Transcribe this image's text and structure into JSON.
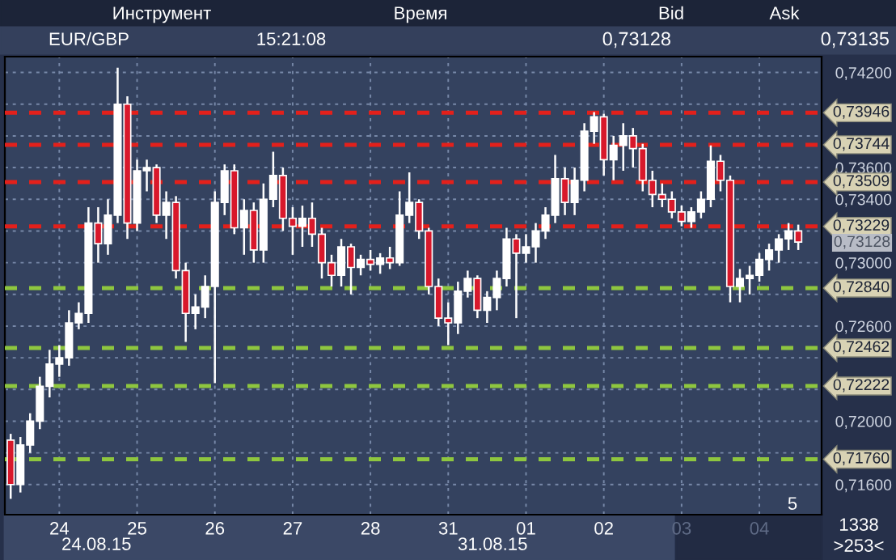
{
  "chart_data": {
    "type": "candlestick",
    "annotations": [
      "Инструмент",
      "Время",
      "Bid",
      "Ask",
      "EUR/GBP",
      "15:21:08",
      "0,73128",
      "0,73135",
      "24.08.15",
      "31.08.15",
      "5",
      "1338",
      ">253<",
      "0,73128"
    ],
    "categories": [
      null,
      null,
      null,
      null,
      null,
      "24",
      null,
      null,
      null,
      null,
      null,
      null,
      null,
      "25",
      null,
      null,
      null,
      null,
      null,
      null,
      null,
      "26",
      null,
      null,
      null,
      null,
      null,
      null,
      null,
      "27",
      null,
      null,
      null,
      null,
      null,
      null,
      null,
      "28",
      null,
      null,
      null,
      null,
      null,
      null,
      null,
      "31",
      null,
      null,
      null,
      null,
      null,
      null,
      null,
      "01",
      null,
      null,
      null,
      null,
      null,
      null,
      null,
      "02",
      null,
      null,
      null,
      null,
      null,
      null,
      null,
      "03",
      null,
      null,
      null,
      null,
      null,
      null,
      null,
      "04",
      null,
      null,
      null,
      null
    ],
    "ohlc": [
      [
        0.7188,
        0.7192,
        0.7151,
        0.716
      ],
      [
        0.716,
        0.719,
        0.7155,
        0.7185
      ],
      [
        0.7185,
        0.7205,
        0.718,
        0.72
      ],
      [
        0.72,
        0.7228,
        0.7195,
        0.7222
      ],
      [
        0.7222,
        0.7245,
        0.7215,
        0.7236
      ],
      [
        0.7236,
        0.7248,
        0.7228,
        0.724
      ],
      [
        0.724,
        0.727,
        0.7235,
        0.7262
      ],
      [
        0.7262,
        0.7275,
        0.7258,
        0.7268
      ],
      [
        0.7268,
        0.7335,
        0.7262,
        0.7325
      ],
      [
        0.7325,
        0.7335,
        0.73,
        0.7312
      ],
      [
        0.7312,
        0.734,
        0.7305,
        0.733
      ],
      [
        0.733,
        0.7423,
        0.7325,
        0.74
      ],
      [
        0.74,
        0.7405,
        0.7315,
        0.7325
      ],
      [
        0.7325,
        0.7365,
        0.732,
        0.7358
      ],
      [
        0.7358,
        0.7365,
        0.7345,
        0.736
      ],
      [
        0.736,
        0.7362,
        0.7325,
        0.733
      ],
      [
        0.733,
        0.7345,
        0.7315,
        0.7338
      ],
      [
        0.7338,
        0.7342,
        0.729,
        0.7295
      ],
      [
        0.7295,
        0.73,
        0.725,
        0.7268
      ],
      [
        0.7268,
        0.728,
        0.7258,
        0.7272
      ],
      [
        0.7272,
        0.7292,
        0.7265,
        0.7285
      ],
      [
        0.7285,
        0.7345,
        0.7224,
        0.7338
      ],
      [
        0.7338,
        0.7362,
        0.733,
        0.7358
      ],
      [
        0.7358,
        0.7362,
        0.7318,
        0.7322
      ],
      [
        0.7322,
        0.734,
        0.7305,
        0.7333
      ],
      [
        0.7333,
        0.7338,
        0.73,
        0.7308
      ],
      [
        0.7308,
        0.735,
        0.73,
        0.734
      ],
      [
        0.734,
        0.737,
        0.7335,
        0.7355
      ],
      [
        0.7355,
        0.736,
        0.732,
        0.7328
      ],
      [
        0.7328,
        0.7335,
        0.7305,
        0.7323
      ],
      [
        0.7323,
        0.7336,
        0.731,
        0.7328
      ],
      [
        0.7328,
        0.7338,
        0.731,
        0.7318
      ],
      [
        0.7318,
        0.7322,
        0.729,
        0.73
      ],
      [
        0.73,
        0.7305,
        0.7285,
        0.7292
      ],
      [
        0.7292,
        0.7315,
        0.7285,
        0.731
      ],
      [
        0.731,
        0.7312,
        0.728,
        0.7297
      ],
      [
        0.7297,
        0.7305,
        0.7292,
        0.7302
      ],
      [
        0.7302,
        0.7308,
        0.7295,
        0.7299
      ],
      [
        0.7299,
        0.7306,
        0.7293,
        0.7303
      ],
      [
        0.7303,
        0.731,
        0.7296,
        0.73
      ],
      [
        0.73,
        0.7345,
        0.7298,
        0.733
      ],
      [
        0.733,
        0.7357,
        0.7325,
        0.7338
      ],
      [
        0.7338,
        0.734,
        0.7315,
        0.732
      ],
      [
        0.732,
        0.7322,
        0.728,
        0.7285
      ],
      [
        0.7285,
        0.729,
        0.726,
        0.7265
      ],
      [
        0.7265,
        0.7275,
        0.7248,
        0.7262
      ],
      [
        0.7262,
        0.7288,
        0.7255,
        0.7282
      ],
      [
        0.7282,
        0.7295,
        0.7278,
        0.729
      ],
      [
        0.729,
        0.7292,
        0.7265,
        0.727
      ],
      [
        0.727,
        0.7282,
        0.7262,
        0.7278
      ],
      [
        0.7278,
        0.7295,
        0.727,
        0.729
      ],
      [
        0.729,
        0.7322,
        0.7285,
        0.7315
      ],
      [
        0.7315,
        0.7318,
        0.7265,
        0.7306
      ],
      [
        0.7306,
        0.7318,
        0.73,
        0.731
      ],
      [
        0.731,
        0.7325,
        0.73,
        0.732
      ],
      [
        0.732,
        0.7335,
        0.7315,
        0.733
      ],
      [
        0.733,
        0.7368,
        0.7325,
        0.7353
      ],
      [
        0.7353,
        0.736,
        0.733,
        0.7338
      ],
      [
        0.7338,
        0.736,
        0.733,
        0.7352
      ],
      [
        0.7352,
        0.7388,
        0.7345,
        0.7383
      ],
      [
        0.7383,
        0.7395,
        0.7375,
        0.7392
      ],
      [
        0.7392,
        0.7394,
        0.7355,
        0.7365
      ],
      [
        0.7365,
        0.738,
        0.7352,
        0.7374
      ],
      [
        0.7374,
        0.7388,
        0.7358,
        0.738
      ],
      [
        0.738,
        0.7385,
        0.736,
        0.7372
      ],
      [
        0.7372,
        0.7375,
        0.7345,
        0.7352
      ],
      [
        0.7352,
        0.7358,
        0.7335,
        0.7343
      ],
      [
        0.7343,
        0.735,
        0.7335,
        0.734
      ],
      [
        0.734,
        0.7345,
        0.7328,
        0.7332
      ],
      [
        0.7332,
        0.7336,
        0.7323,
        0.7326
      ],
      [
        0.7326,
        0.7335,
        0.7322,
        0.7332
      ],
      [
        0.7332,
        0.7345,
        0.7328,
        0.734
      ],
      [
        0.734,
        0.7374,
        0.7335,
        0.7364
      ],
      [
        0.7364,
        0.7368,
        0.7345,
        0.7352
      ],
      [
        0.7352,
        0.7355,
        0.7275,
        0.7285
      ],
      [
        0.7285,
        0.7296,
        0.7275,
        0.729
      ],
      [
        0.729,
        0.7298,
        0.728,
        0.7292
      ],
      [
        0.7292,
        0.7306,
        0.7288,
        0.7302
      ],
      [
        0.7302,
        0.7312,
        0.7295,
        0.7308
      ],
      [
        0.7308,
        0.7318,
        0.73,
        0.7315
      ],
      [
        0.7315,
        0.7325,
        0.7308,
        0.732
      ],
      [
        0.732,
        0.7324,
        0.7308,
        0.7313
      ]
    ],
    "ylim": [
      0.7141,
      0.743
    ],
    "yticks": [
      {
        "value": 0.716,
        "label": "0,71600"
      },
      {
        "value": 0.718,
        "label": null
      },
      {
        "value": 0.72,
        "label": "0,72000"
      },
      {
        "value": 0.722,
        "label": null
      },
      {
        "value": 0.724,
        "label": null
      },
      {
        "value": 0.726,
        "label": "0,72600"
      },
      {
        "value": 0.728,
        "label": null
      },
      {
        "value": 0.73,
        "label": "0,73000"
      },
      {
        "value": 0.732,
        "label": null
      },
      {
        "value": 0.734,
        "label": "0,73400"
      },
      {
        "value": 0.736,
        "label": "0,73600"
      },
      {
        "value": 0.738,
        "label": null
      },
      {
        "value": 0.74,
        "label": null
      },
      {
        "value": 0.742,
        "label": "0,74200"
      }
    ],
    "grid": true,
    "ref_lines": [
      {
        "axis": "y",
        "value": 0.73946,
        "label": "0,73946",
        "color": "#e3201b",
        "line_style": "dashed"
      },
      {
        "axis": "y",
        "value": 0.73744,
        "label": "0,73744",
        "color": "#e3201b",
        "line_style": "dashed"
      },
      {
        "axis": "y",
        "value": 0.73509,
        "label": "0,73509",
        "color": "#e3201b",
        "line_style": "dashed"
      },
      {
        "axis": "y",
        "value": 0.73229,
        "label": "0,73229",
        "color": "#e3201b",
        "line_style": "dashed"
      },
      {
        "axis": "y",
        "value": 0.7284,
        "label": "0,72840",
        "color": "#8ec63f",
        "line_style": "dashed"
      },
      {
        "axis": "y",
        "value": 0.72462,
        "label": "0,72462",
        "color": "#8ec63f",
        "line_style": "dashed"
      },
      {
        "axis": "y",
        "value": 0.72222,
        "label": "0,72222",
        "color": "#8ec63f",
        "line_style": "dashed"
      },
      {
        "axis": "y",
        "value": 0.7176,
        "label": "0,71760",
        "color": "#8ec63f",
        "line_style": "dashed"
      }
    ]
  }
}
